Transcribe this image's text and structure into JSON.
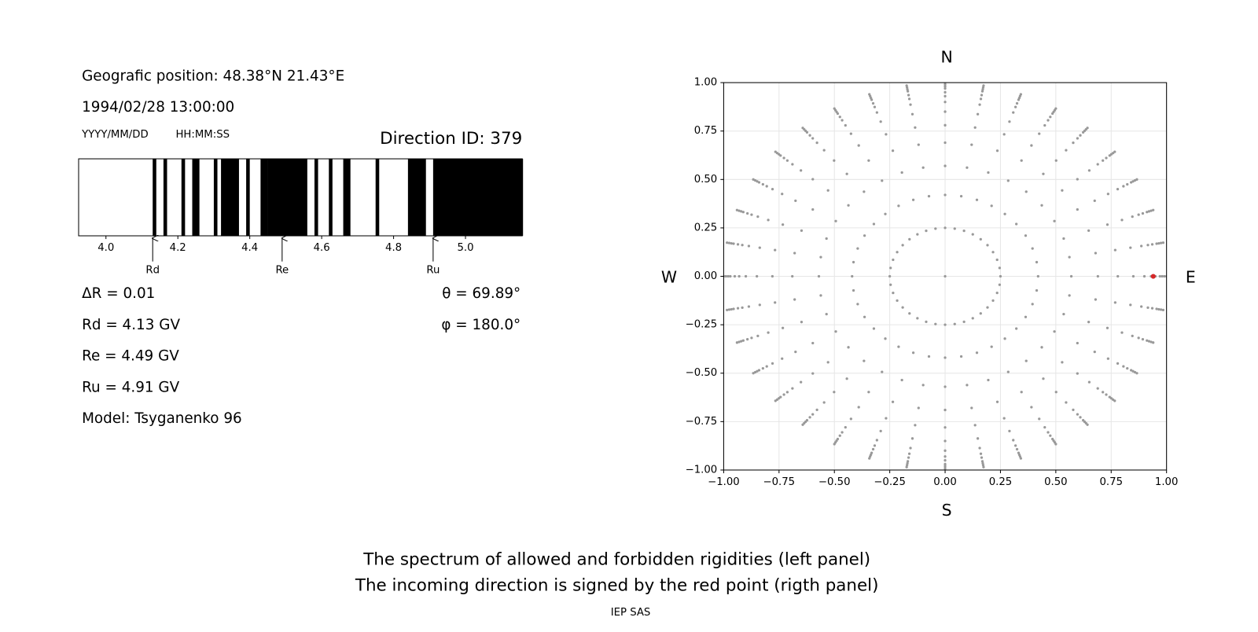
{
  "info": {
    "position": "Geografic position: 48.38°N 21.43°E",
    "datetime": "1994/02/28 13:00:00",
    "date_format": "YYYY/MM/DD",
    "time_format": "HH:MM:SS",
    "direction_id": "Direction ID: 379",
    "delta_r": "ΔR = 0.01",
    "rd": "Rd = 4.13 GV",
    "re": "Re = 4.49 GV",
    "ru": "Ru = 4.91 GV",
    "model": "Model: Tsyganenko 96",
    "theta": "θ = 69.89°",
    "phi": "φ = 180.0°"
  },
  "chart_data": [
    {
      "type": "spectrum",
      "xlim": [
        3.924,
        5.158
      ],
      "xticks": [
        {
          "value": 4.0,
          "label": "4.0"
        },
        {
          "value": 4.2,
          "label": "4.2"
        },
        {
          "value": 4.4,
          "label": "4.4"
        },
        {
          "value": 4.6,
          "label": "4.6"
        },
        {
          "value": 4.8,
          "label": "4.8"
        },
        {
          "value": 5.0,
          "label": "5.0"
        }
      ],
      "color": "#000000",
      "forbidden": [
        [
          4.13,
          4.14
        ],
        [
          4.16,
          4.17
        ],
        [
          4.21,
          4.22
        ],
        [
          4.24,
          4.26
        ],
        [
          4.3,
          4.31
        ],
        [
          4.32,
          4.37
        ],
        [
          4.39,
          4.4
        ],
        [
          4.43,
          4.45
        ],
        [
          4.45,
          4.56
        ],
        [
          4.58,
          4.59
        ],
        [
          4.62,
          4.63
        ],
        [
          4.66,
          4.68
        ],
        [
          4.75,
          4.76
        ],
        [
          4.84,
          4.89
        ],
        [
          4.91,
          5.16
        ]
      ],
      "markers": [
        {
          "label": "Rd",
          "value": 4.13
        },
        {
          "label": "Re",
          "value": 4.49
        },
        {
          "label": "Ru",
          "value": 4.91
        }
      ]
    },
    {
      "type": "scatter",
      "xlim": [
        -1,
        1
      ],
      "ylim": [
        -1,
        1
      ],
      "xticks": [
        {
          "value": -1,
          "label": "−1.00"
        },
        {
          "value": -0.75,
          "label": "−0.75"
        },
        {
          "value": -0.5,
          "label": "−0.50"
        },
        {
          "value": -0.25,
          "label": "−0.25"
        },
        {
          "value": 0,
          "label": "0.00"
        },
        {
          "value": 0.25,
          "label": "0.25"
        },
        {
          "value": 0.5,
          "label": "0.50"
        },
        {
          "value": 0.75,
          "label": "0.75"
        },
        {
          "value": 1,
          "label": "1.00"
        }
      ],
      "yticks": [
        {
          "value": -1,
          "label": "−1.00"
        },
        {
          "value": -0.75,
          "label": "−0.75"
        },
        {
          "value": -0.5,
          "label": "−0.50"
        },
        {
          "value": -0.25,
          "label": "−0.25"
        },
        {
          "value": 0,
          "label": "0.00"
        },
        {
          "value": 0.25,
          "label": "0.25"
        },
        {
          "value": 0.5,
          "label": "0.50"
        },
        {
          "value": 0.75,
          "label": "0.75"
        },
        {
          "value": 1,
          "label": "1.00"
        }
      ],
      "grid": true,
      "color": "#999999",
      "radii": [
        0.25,
        0.42,
        0.57,
        0.69,
        0.78,
        0.85,
        0.9,
        0.93,
        0.95,
        0.97,
        0.98,
        0.99,
        1.0
      ],
      "azimuth_deg": [
        0,
        10,
        20,
        30,
        40,
        50,
        60,
        70,
        80,
        90,
        100,
        110,
        120,
        130,
        140,
        150,
        160,
        170,
        180,
        190,
        200,
        210,
        220,
        230,
        240,
        250,
        260,
        270,
        280,
        290,
        300,
        310,
        320,
        330,
        340,
        350
      ],
      "center": {
        "x": 0,
        "y": 0
      },
      "highlight": {
        "x": 0.94,
        "y": 0,
        "color": "#d62728"
      },
      "compass": {
        "north": "N",
        "south": "S",
        "west": "W",
        "east": "E"
      }
    }
  ],
  "footer": {
    "caption_1": "The spectrum of allowed and forbidden rigidities (left panel)",
    "caption_2": "The incoming direction is signed by the red point (rigth panel)",
    "credit": "IEP SAS"
  }
}
